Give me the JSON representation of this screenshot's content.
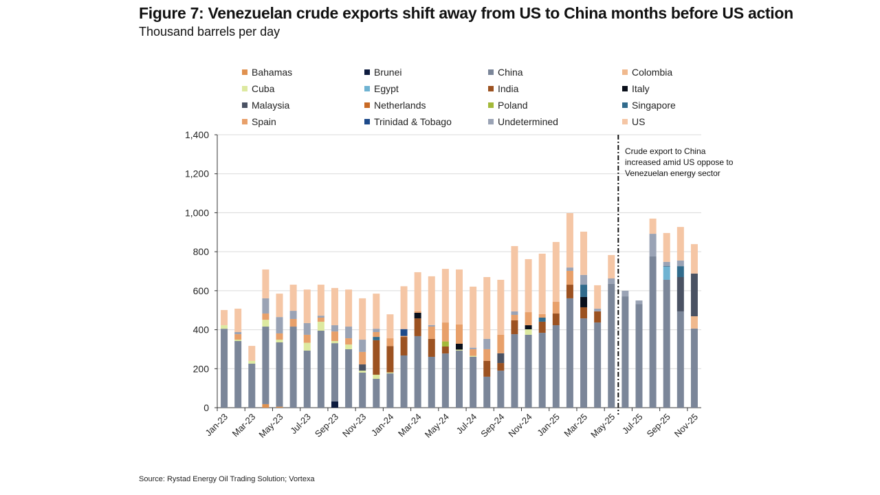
{
  "title": "Figure 7: Venezuelan crude exports shift away from US to China months before US action",
  "subtitle": "Thousand barrels per day",
  "source": "Source: Rystad Energy Oil Trading Solution; Vortexa",
  "chart_data": {
    "type": "bar",
    "stacked": true,
    "title": "Figure 7: Venezuelan crude exports shift away from US to China months before US action",
    "ylabel": "Thousand barrels per day",
    "ylim": [
      0,
      1400
    ],
    "yticks": [
      0,
      200,
      400,
      600,
      800,
      1000,
      1200,
      1400
    ],
    "ytick_labels": [
      "0",
      "200",
      "400",
      "600",
      "800",
      "1,000",
      "1,200",
      "1,400"
    ],
    "grid": true,
    "legend_position": "top",
    "categories": [
      "Jan-23",
      "Feb-23",
      "Mar-23",
      "Apr-23",
      "May-23",
      "Jun-23",
      "Jul-23",
      "Aug-23",
      "Sep-23",
      "Oct-23",
      "Nov-23",
      "Dec-23",
      "Jan-24",
      "Feb-24",
      "Mar-24",
      "Apr-24",
      "May-24",
      "Jun-24",
      "Jul-24",
      "Aug-24",
      "Sep-24",
      "Oct-24",
      "Nov-24",
      "Dec-24",
      "Jan-25",
      "Feb-25",
      "Mar-25",
      "Apr-25",
      "May-25",
      "Jun-25",
      "Jul-25",
      "Aug-25",
      "Sep-25",
      "Oct-25",
      "Nov-25"
    ],
    "xtick_labels": [
      "Jan-23",
      "Mar-23",
      "May-23",
      "Jul-23",
      "Sep-23",
      "Nov-23",
      "Jan-24",
      "Mar-24",
      "May-24",
      "Jul-24",
      "Sep-24",
      "Nov-24",
      "Jan-25",
      "Mar-25",
      "May-25",
      "Jul-25",
      "Sep-25",
      "Nov-25"
    ],
    "annotation": {
      "text": "Crude export to China increased amid US oppose to Venezuelan energy sector",
      "after_category": "May-25"
    },
    "series": [
      {
        "name": "Bahamas",
        "color": "#e0914f",
        "values": {
          "Apr-23": 18,
          "May-23": 5
        }
      },
      {
        "name": "Brunei",
        "color": "#0d1b3e",
        "values": {
          "Sep-23": 32
        }
      },
      {
        "name": "China",
        "color": "#7b8699",
        "values": {
          "Jan-23": 405,
          "Feb-23": 342,
          "Mar-23": 226,
          "Apr-23": 398,
          "May-23": 330,
          "Jun-23": 416,
          "Jul-23": 293,
          "Aug-23": 395,
          "Sep-23": 299,
          "Oct-23": 300,
          "Nov-23": 180,
          "Dec-23": 148,
          "Jan-24": 176,
          "Feb-24": 268,
          "Mar-24": 367,
          "Apr-24": 261,
          "May-24": 278,
          "Jun-24": 293,
          "Jul-24": 261,
          "Aug-24": 159,
          "Sep-24": 190,
          "Oct-24": 377,
          "Nov-24": 374,
          "Dec-24": 384,
          "Jan-25": 423,
          "Feb-25": 561,
          "Mar-25": 458,
          "Apr-25": 437,
          "May-25": 635,
          "Jun-25": 571,
          "Jul-25": 532,
          "Aug-25": 776,
          "Sep-25": 656,
          "Oct-25": 494,
          "Nov-25": 406
        }
      },
      {
        "name": "Colombia",
        "color": "#f0b98e",
        "values": {
          "Nov-25": 63
        }
      },
      {
        "name": "Cuba",
        "color": "#dde9a0",
        "values": {
          "Jan-23": 18,
          "Feb-23": 7,
          "Mar-23": 14,
          "Apr-23": 35,
          "May-23": 14,
          "Jul-23": 40,
          "Aug-23": 46,
          "Sep-23": 11,
          "Oct-23": 24,
          "Nov-23": 10,
          "Dec-23": 21,
          "Jan-24": 5,
          "Jun-24": 5,
          "Jul-24": 5,
          "Nov-24": 28
        }
      },
      {
        "name": "Egypt",
        "color": "#6fb3d2",
        "values": {
          "Sep-25": 67
        }
      },
      {
        "name": "India",
        "color": "#9c5221",
        "values": {
          "Dec-23": 177,
          "Jan-24": 135,
          "Feb-24": 95,
          "Mar-24": 91,
          "Apr-24": 92,
          "May-24": 36,
          "Aug-24": 81,
          "Sep-24": 39,
          "Oct-24": 71,
          "Dec-24": 57,
          "Jan-25": 60,
          "Feb-25": 70,
          "Mar-25": 57,
          "Apr-25": 57
        }
      },
      {
        "name": "Italy",
        "color": "#0a0f1a",
        "values": {
          "Mar-24": 29,
          "Jun-24": 30,
          "Nov-24": 21,
          "Mar-25": 53
        }
      },
      {
        "name": "Malaysia",
        "color": "#4a5263",
        "values": {
          "Nov-23": 32,
          "Sep-24": 50,
          "Oct-25": 176,
          "Nov-25": 219
        }
      },
      {
        "name": "Netherlands",
        "color": "#c86a25",
        "values": {}
      },
      {
        "name": "Poland",
        "color": "#a3b93a",
        "values": {
          "May-24": 26
        }
      },
      {
        "name": "Singapore",
        "color": "#316b8c",
        "values": {
          "Dec-23": 17,
          "Dec-24": 21,
          "Mar-25": 63,
          "Sep-25": 3,
          "Oct-25": 56
        }
      },
      {
        "name": "Spain",
        "color": "#e8a06a",
        "values": {
          "Feb-23": 28,
          "Apr-23": 32,
          "May-23": 32,
          "Jun-23": 39,
          "Jul-23": 41,
          "Aug-23": 21,
          "Sep-23": 49,
          "Oct-23": 32,
          "Nov-23": 64,
          "Dec-23": 25,
          "Jan-24": 40,
          "Feb-24": 5,
          "Mar-24": 8,
          "Apr-24": 63,
          "May-24": 97,
          "Jun-24": 99,
          "Jul-24": 34,
          "Aug-24": 60,
          "Sep-24": 95,
          "Oct-24": 28,
          "Nov-24": 67,
          "Dec-24": 18,
          "Jan-25": 60,
          "Feb-25": 71
        }
      },
      {
        "name": "Trinidad & Tobago",
        "color": "#1d4a8a",
        "values": {
          "Feb-24": 35
        }
      },
      {
        "name": "Undetermined",
        "color": "#9aa3b5",
        "values": {
          "Feb-23": 11,
          "Apr-23": 78,
          "May-23": 84,
          "Jun-23": 42,
          "Jul-23": 60,
          "Aug-23": 10,
          "Sep-23": 32,
          "Oct-23": 60,
          "Nov-23": 63,
          "Dec-23": 17,
          "Apr-24": 8,
          "Jul-24": 8,
          "Aug-24": 53,
          "Oct-24": 18,
          "Feb-25": 17,
          "Mar-25": 50,
          "Apr-25": 14,
          "May-25": 28,
          "Jun-25": 29,
          "Jul-25": 18,
          "Aug-25": 116,
          "Sep-25": 22,
          "Oct-25": 29
        }
      },
      {
        "name": "US",
        "color": "#f5c6a5",
        "values": {
          "Jan-23": 78,
          "Feb-23": 120,
          "Mar-23": 77,
          "Apr-23": 148,
          "May-23": 120,
          "Jun-23": 134,
          "Jul-23": 172,
          "Aug-23": 159,
          "Sep-23": 191,
          "Oct-23": 190,
          "Nov-23": 212,
          "Dec-23": 180,
          "Jan-24": 123,
          "Feb-24": 220,
          "Mar-24": 200,
          "Apr-24": 250,
          "May-24": 275,
          "Jun-24": 282,
          "Jul-24": 313,
          "Aug-24": 317,
          "Sep-24": 282,
          "Oct-24": 335,
          "Nov-24": 272,
          "Dec-24": 310,
          "Jan-25": 307,
          "Feb-25": 279,
          "Mar-25": 222,
          "Apr-25": 120,
          "May-25": 120,
          "Aug-25": 78,
          "Sep-25": 148,
          "Oct-25": 172,
          "Nov-25": 151
        }
      }
    ]
  }
}
